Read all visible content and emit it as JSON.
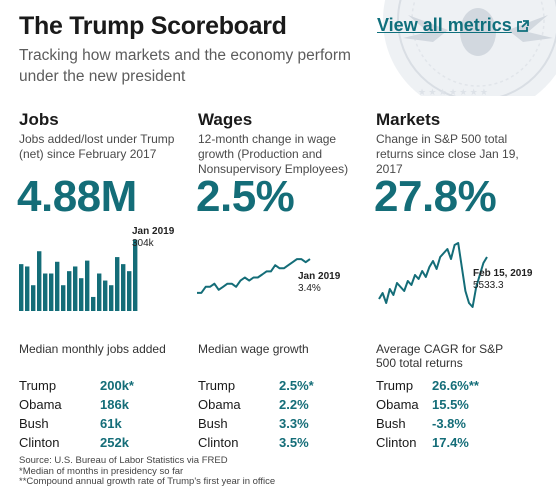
{
  "header": {
    "title": "The Trump Scoreboard",
    "view_all": "View all metrics",
    "subtitle": "Tracking how markets and the economy perform under the new president"
  },
  "columns": [
    {
      "heading": "Jobs",
      "description": "Jobs added/lost under Trump (net) since February 2017",
      "big_value": "4.88M",
      "chart_label_date": "Jan 2019",
      "chart_label_value": "304k",
      "median_label": "Median monthly jobs added",
      "rows": [
        {
          "name": "Trump",
          "value": "200k*"
        },
        {
          "name": "Obama",
          "value": "186k"
        },
        {
          "name": "Bush",
          "value": "61k"
        },
        {
          "name": "Clinton",
          "value": "252k"
        }
      ]
    },
    {
      "heading": "Wages",
      "description": "12-month change in wage growth (Production and Nonsupervisory Employees)",
      "big_value": "2.5%",
      "chart_label_date": "Jan 2019",
      "chart_label_value": "3.4%",
      "median_label": "Median wage growth",
      "rows": [
        {
          "name": "Trump",
          "value": "2.5%*"
        },
        {
          "name": "Obama",
          "value": "2.2%"
        },
        {
          "name": "Bush",
          "value": "3.3%"
        },
        {
          "name": "Clinton",
          "value": "3.5%"
        }
      ]
    },
    {
      "heading": "Markets",
      "description": "Change in S&P 500 total returns since close Jan 19, 2017",
      "big_value": "27.8%",
      "chart_label_date": "Feb 15, 2019",
      "chart_label_value": "5533.3",
      "median_label": "Average CAGR for S&P 500 total returns",
      "rows": [
        {
          "name": "Trump",
          "value": "26.6%**"
        },
        {
          "name": "Obama",
          "value": "15.5%"
        },
        {
          "name": "Bush",
          "value": "-3.8%"
        },
        {
          "name": "Clinton",
          "value": "17.4%"
        }
      ]
    }
  ],
  "footnotes": [
    "Source: U.S. Bureau of Labor Statistics via FRED",
    "*Median of months in presidency so far",
    "**Compound annual growth rate of Trump's first year in office"
  ],
  "colors": {
    "accent": "#146d78",
    "link": "#0f6f7c",
    "text": "#1a1a1a"
  },
  "chart_data": [
    {
      "type": "bar",
      "title": "Jobs",
      "values": [
        200,
        190,
        110,
        255,
        160,
        160,
        210,
        110,
        170,
        190,
        140,
        215,
        60,
        160,
        130,
        110,
        230,
        200,
        170,
        304
      ],
      "annotation": {
        "label": "Jan 2019",
        "value": "304k"
      }
    },
    {
      "type": "line",
      "title": "Wages",
      "values": [
        2.3,
        2.3,
        2.5,
        2.5,
        2.6,
        2.4,
        2.5,
        2.6,
        2.6,
        2.5,
        2.7,
        2.8,
        2.7,
        2.8,
        2.8,
        2.9,
        3.0,
        3.0,
        3.2,
        3.1,
        3.1,
        3.2,
        3.3,
        3.4,
        3.4,
        3.3,
        3.4
      ],
      "annotation": {
        "label": "Jan 2019",
        "value": "3.4%"
      }
    },
    {
      "type": "line",
      "title": "Markets",
      "values": [
        6,
        9,
        4,
        11,
        8,
        14,
        12,
        10,
        15,
        13,
        18,
        16,
        20,
        17,
        22,
        25,
        21,
        27,
        29,
        31,
        26,
        33,
        34,
        22,
        10,
        4,
        2,
        12,
        18,
        24,
        27
      ],
      "annotation": {
        "label": "Feb 15, 2019",
        "value": "5533.3"
      }
    }
  ]
}
